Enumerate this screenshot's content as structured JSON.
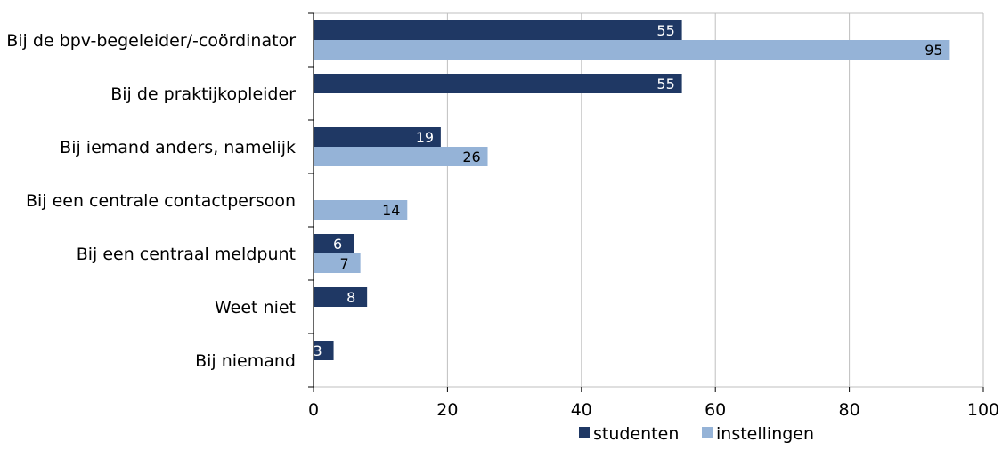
{
  "chart_data": {
    "type": "bar",
    "orientation": "horizontal",
    "categories": [
      "Bij de bpv-begeleider/-coördinator",
      "Bij de praktijkopleider",
      "Bij iemand anders, namelijk",
      "Bij een centrale contactpersoon",
      "Bij een centraal meldpunt",
      "Weet niet",
      "Bij niemand"
    ],
    "series": [
      {
        "name": "studenten",
        "color": "#1f3864",
        "label_color": "#ffffff",
        "values": [
          55,
          55,
          19,
          null,
          6,
          8,
          3
        ]
      },
      {
        "name": "instellingen",
        "color": "#95b3d7",
        "label_color": "#000000",
        "values": [
          95,
          null,
          26,
          14,
          7,
          null,
          null
        ]
      }
    ],
    "xlim": [
      0,
      100
    ],
    "x_ticks": [
      "0",
      "20",
      "40",
      "60",
      "80",
      "100"
    ],
    "grid": "vertical",
    "legend_position": "bottom",
    "title": "",
    "xlabel": "",
    "ylabel": ""
  }
}
